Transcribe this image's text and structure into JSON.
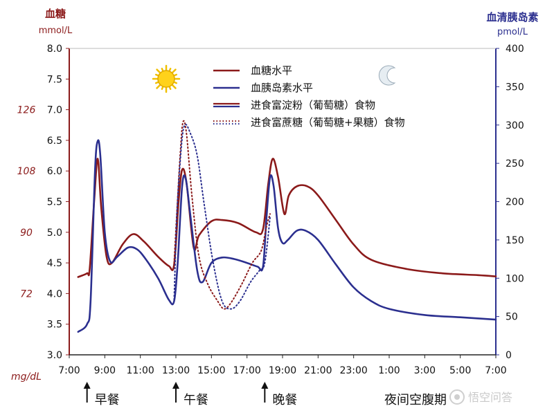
{
  "chart_data": {
    "type": "line",
    "left_axis": {
      "title": "血糖",
      "unit": "mmol/L",
      "ylim": [
        3.0,
        8.0
      ],
      "ticks": [
        "3.0",
        "3.5",
        "4.0",
        "4.5",
        "5.0",
        "5.5",
        "6.0",
        "6.5",
        "7.0",
        "7.5",
        "8.0"
      ],
      "secondary_unit": "mg/dL",
      "secondary_ticks": [
        {
          "label": "72",
          "at": 4.0
        },
        {
          "label": "90",
          "at": 5.0
        },
        {
          "label": "108",
          "at": 6.0
        },
        {
          "label": "126",
          "at": 7.0
        }
      ]
    },
    "right_axis": {
      "title": "血清胰岛素",
      "unit": "pmol/L",
      "ylim": [
        0,
        400
      ],
      "ticks": [
        "0",
        "50",
        "100",
        "150",
        "200",
        "250",
        "300",
        "350",
        "400"
      ]
    },
    "x_axis": {
      "ticks": [
        "7:00",
        "9:00",
        "11:00",
        "13:00",
        "15:00",
        "17:00",
        "19:00",
        "21:00",
        "23:00",
        "1:00",
        "3:00",
        "5:00",
        "7:00"
      ],
      "xlim": [
        7,
        31
      ]
    },
    "meals": [
      {
        "label": "早餐",
        "time": 8
      },
      {
        "label": "午餐",
        "time": 13
      },
      {
        "label": "晚餐",
        "time": 18
      }
    ],
    "night_label": "夜间空腹期",
    "legend": [
      {
        "label": "血糖水平",
        "color": "#8b1a1a",
        "style": "solid"
      },
      {
        "label": "血胰岛素水平",
        "color": "#2b2f8f",
        "style": "solid"
      },
      {
        "label": "进食富淀粉（葡萄糖）食物",
        "colors": [
          "#8b1a1a",
          "#2b2f8f"
        ],
        "style": "solid"
      },
      {
        "label": "进食富蔗糖（葡萄糖+果糖）食物",
        "colors": [
          "#8b1a1a",
          "#2b2f8f"
        ],
        "style": "dotted"
      }
    ],
    "series": [
      {
        "name": "血糖水平",
        "axis": "left",
        "color": "#8b1a1a",
        "style": "solid",
        "points": [
          [
            7.5,
            4.27
          ],
          [
            8.0,
            4.33
          ],
          [
            8.15,
            4.4
          ],
          [
            8.4,
            5.5
          ],
          [
            8.6,
            6.2
          ],
          [
            8.8,
            5.4
          ],
          [
            9.1,
            4.6
          ],
          [
            9.4,
            4.5
          ],
          [
            10.0,
            4.8
          ],
          [
            10.6,
            4.97
          ],
          [
            11.2,
            4.85
          ],
          [
            12.0,
            4.6
          ],
          [
            12.6,
            4.45
          ],
          [
            12.9,
            4.47
          ],
          [
            13.15,
            5.5
          ],
          [
            13.35,
            6.02
          ],
          [
            13.6,
            5.8
          ],
          [
            14.0,
            4.75
          ],
          [
            14.3,
            4.95
          ],
          [
            15.0,
            5.18
          ],
          [
            15.6,
            5.2
          ],
          [
            16.5,
            5.15
          ],
          [
            17.5,
            5.0
          ],
          [
            17.9,
            5.05
          ],
          [
            18.2,
            5.8
          ],
          [
            18.45,
            6.2
          ],
          [
            18.75,
            5.9
          ],
          [
            19.1,
            5.3
          ],
          [
            19.35,
            5.6
          ],
          [
            19.8,
            5.75
          ],
          [
            20.4,
            5.75
          ],
          [
            21.0,
            5.6
          ],
          [
            22.0,
            5.2
          ],
          [
            23.0,
            4.8
          ],
          [
            24.0,
            4.55
          ],
          [
            26.0,
            4.4
          ],
          [
            28.0,
            4.33
          ],
          [
            30.0,
            4.3
          ],
          [
            31.0,
            4.28
          ]
        ]
      },
      {
        "name": "血胰岛素水平",
        "axis": "right",
        "color": "#2b2f8f",
        "style": "solid",
        "points": [
          [
            7.5,
            30
          ],
          [
            8.0,
            40
          ],
          [
            8.2,
            70
          ],
          [
            8.45,
            240
          ],
          [
            8.6,
            279
          ],
          [
            8.75,
            260
          ],
          [
            9.0,
            160
          ],
          [
            9.3,
            122
          ],
          [
            9.7,
            128
          ],
          [
            10.3,
            140
          ],
          [
            10.8,
            138
          ],
          [
            11.3,
            125
          ],
          [
            12.0,
            100
          ],
          [
            12.6,
            72
          ],
          [
            12.9,
            70
          ],
          [
            13.1,
            120
          ],
          [
            13.35,
            220
          ],
          [
            13.55,
            230
          ],
          [
            13.8,
            185
          ],
          [
            14.2,
            110
          ],
          [
            14.5,
            95
          ],
          [
            15.0,
            120
          ],
          [
            15.6,
            127
          ],
          [
            16.3,
            125
          ],
          [
            17.0,
            120
          ],
          [
            17.6,
            115
          ],
          [
            17.9,
            115
          ],
          [
            18.1,
            180
          ],
          [
            18.3,
            232
          ],
          [
            18.5,
            220
          ],
          [
            18.75,
            165
          ],
          [
            19.0,
            146
          ],
          [
            19.3,
            150
          ],
          [
            19.8,
            162
          ],
          [
            20.3,
            162
          ],
          [
            21.0,
            150
          ],
          [
            22.0,
            118
          ],
          [
            23.0,
            88
          ],
          [
            24.0,
            70
          ],
          [
            25.0,
            60
          ],
          [
            27.0,
            52
          ],
          [
            29.0,
            49
          ],
          [
            31.0,
            46
          ]
        ]
      },
      {
        "name": "进食富蔗糖（葡萄糖+果糖）食物",
        "axis": "left",
        "color": "#8b1a1a",
        "style": "dotted",
        "points": [
          [
            12.9,
            4.5
          ],
          [
            13.05,
            5.3
          ],
          [
            13.25,
            6.3
          ],
          [
            13.4,
            6.8
          ],
          [
            13.6,
            6.6
          ],
          [
            13.9,
            5.6
          ],
          [
            14.3,
            4.6
          ],
          [
            14.8,
            4.15
          ],
          [
            15.3,
            3.9
          ],
          [
            15.7,
            3.75
          ],
          [
            16.1,
            3.85
          ],
          [
            16.7,
            4.15
          ],
          [
            17.3,
            4.5
          ],
          [
            17.8,
            4.7
          ],
          [
            18.1,
            5.1
          ],
          [
            18.3,
            5.3
          ]
        ]
      },
      {
        "name": "进食富蔗糖（葡萄糖+果糖）食物",
        "axis": "right",
        "color": "#2b2f8f",
        "style": "dotted",
        "points": [
          [
            12.9,
            72
          ],
          [
            13.05,
            180
          ],
          [
            13.3,
            270
          ],
          [
            13.5,
            300
          ],
          [
            13.8,
            290
          ],
          [
            14.2,
            260
          ],
          [
            14.6,
            195
          ],
          [
            15.1,
            120
          ],
          [
            15.6,
            70
          ],
          [
            16.1,
            60
          ],
          [
            16.6,
            70
          ],
          [
            17.2,
            95
          ],
          [
            17.7,
            110
          ],
          [
            18.0,
            120
          ],
          [
            18.3,
            180
          ]
        ]
      }
    ]
  }
}
